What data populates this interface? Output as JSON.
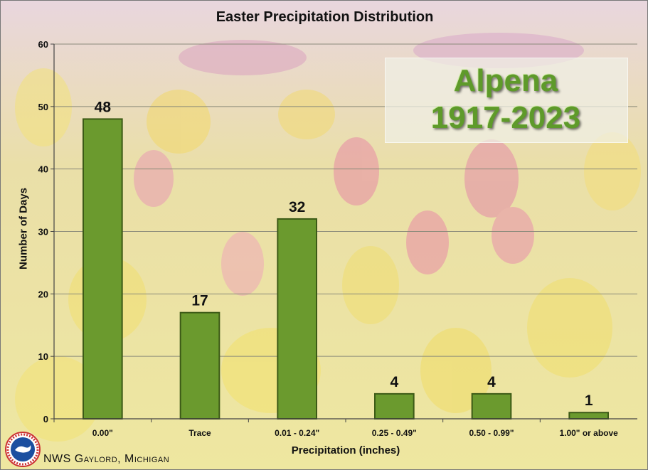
{
  "chart_data": {
    "type": "bar",
    "title": "Easter Precipitation Distribution",
    "xlabel": "Precipitation (inches)",
    "ylabel": "Number of Days",
    "categories": [
      "0.00\"",
      "Trace",
      "0.01 - 0.24\"",
      "0.25 - 0.49\"",
      "0.50 - 0.99\"",
      "1.00\" or above"
    ],
    "values": [
      48,
      17,
      32,
      4,
      4,
      1
    ],
    "ylim": [
      0,
      60
    ],
    "yticks": [
      0,
      10,
      20,
      30,
      40,
      50,
      60
    ],
    "grid": true,
    "bar_color": "#6b9a2e",
    "annotations": [
      "Alpena",
      "1917-2023"
    ]
  },
  "overlay": {
    "line1": "Alpena",
    "line2": "1917-2023"
  },
  "footer": {
    "text": "NWS Gaylord, Michigan",
    "logo_icon": "nws-logo-icon",
    "logo_text": "NATIONAL WEATHER SERVICE"
  }
}
